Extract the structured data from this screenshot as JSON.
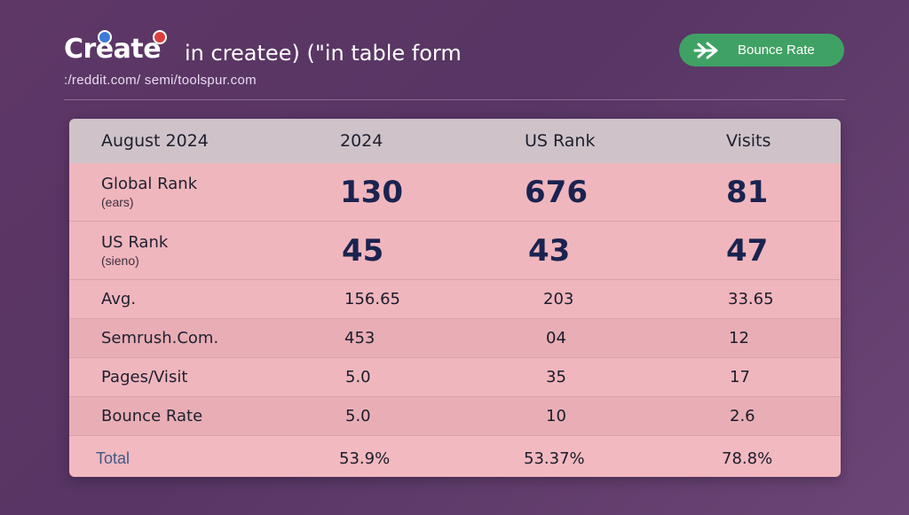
{
  "header": {
    "logo_text": "Create",
    "headline": "in createe) (\"in table form",
    "subtitle": ":/reddit.com/ semi/toolspur.com",
    "pill": {
      "label": "Bounce Rate",
      "icon": "plane-arrow-icon",
      "color": "#3fa264"
    }
  },
  "table": {
    "columns": [
      "August 2024",
      "2024",
      "US Rank",
      "Visits"
    ],
    "rows": [
      {
        "label": "Global Rank",
        "sub": "(ears)",
        "values": [
          "130",
          "676",
          "81"
        ],
        "style": "big"
      },
      {
        "label": "US Rank",
        "sub": "(sieno)",
        "values": [
          "45",
          "43",
          "47"
        ],
        "style": "big"
      },
      {
        "label": "Avg.",
        "values": [
          "156.65",
          "203",
          "33.65"
        ],
        "style": "small"
      },
      {
        "label": "Semrush.Com.",
        "values": [
          "453",
          "04",
          "12"
        ],
        "style": "small"
      },
      {
        "label": "Pages/Visit",
        "values": [
          "5.0",
          "35",
          "17"
        ],
        "style": "small"
      },
      {
        "label": "Bounce Rate",
        "values": [
          "5.0",
          "10",
          "2.6"
        ],
        "style": "small"
      }
    ],
    "total": {
      "label": "Total",
      "values": [
        "53.9%",
        "53.37%",
        "78.8%"
      ]
    }
  },
  "colors": {
    "background": "#5e3766",
    "table_header": "#cfc3c9",
    "table_row": "#f0b6bd",
    "accent_green": "#3fa264",
    "number_dark": "#1a2350"
  }
}
